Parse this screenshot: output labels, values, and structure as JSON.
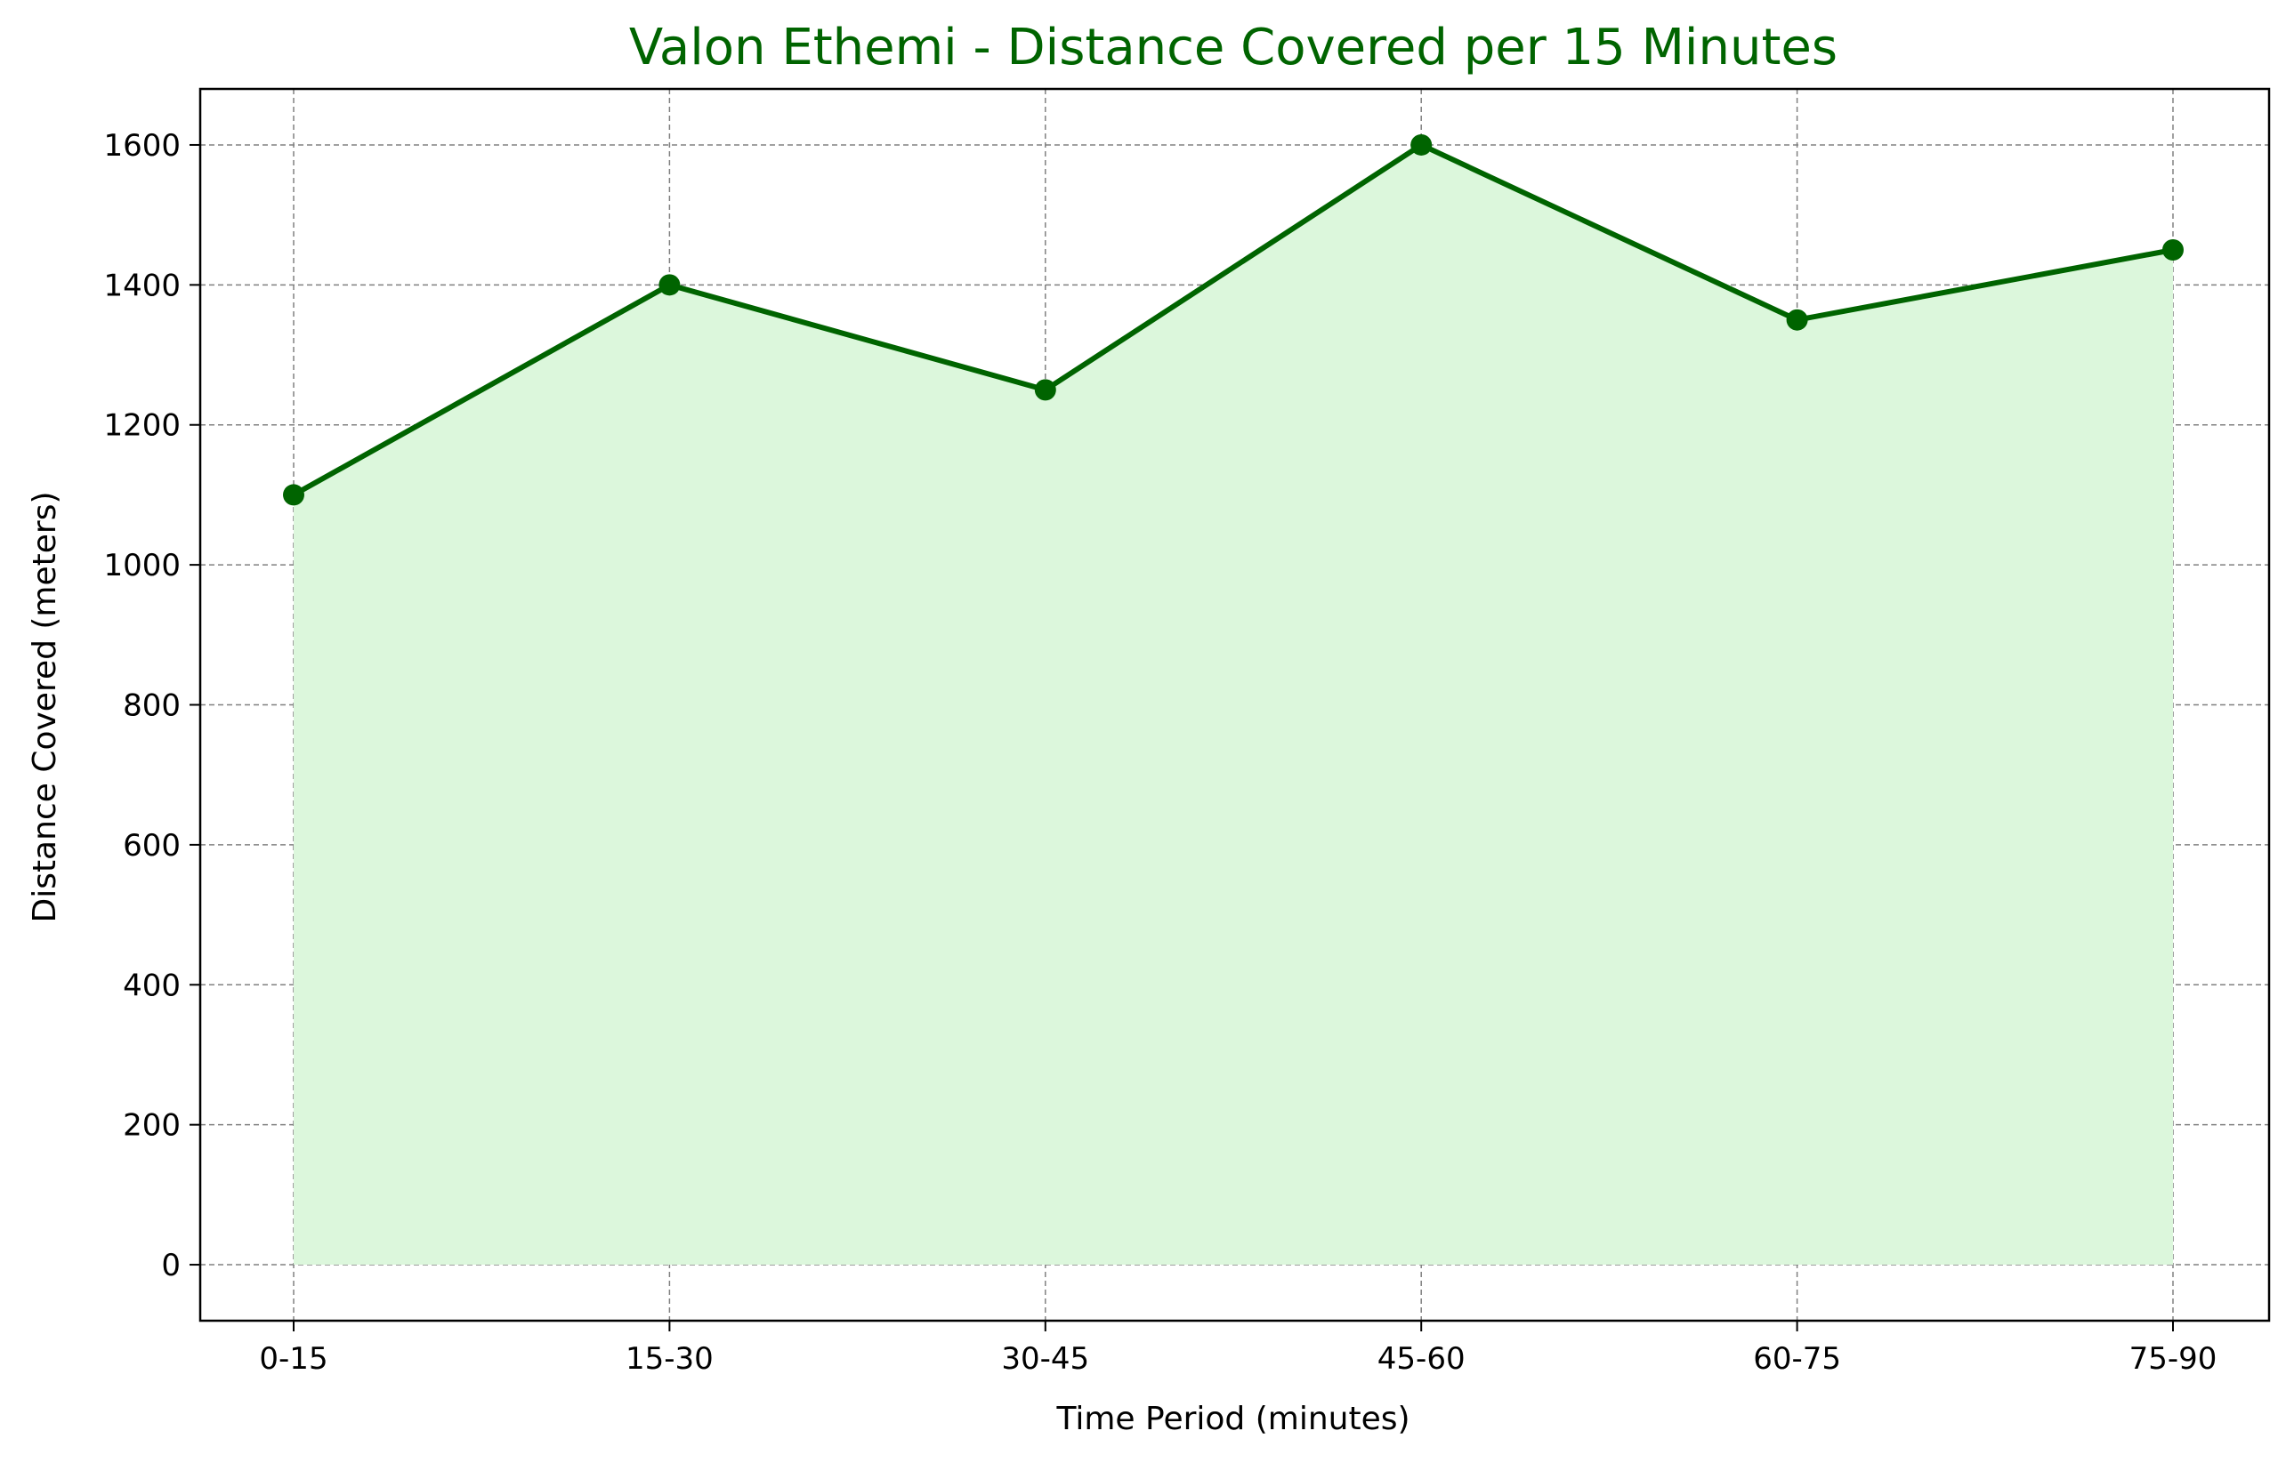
{
  "colors": {
    "line": "#006400",
    "fill": "#dcf7dc",
    "grid": "#808080",
    "title": "#006400",
    "axes": "#000000"
  },
  "chart_data": {
    "type": "area",
    "title": "Valon Ethemi - Distance Covered per 15 Minutes",
    "xlabel": "Time Period (minutes)",
    "ylabel": "Distance Covered (meters)",
    "categories": [
      "0-15",
      "15-30",
      "30-45",
      "45-60",
      "60-75",
      "75-90"
    ],
    "series": [
      {
        "values": [
          1100,
          1400,
          1250,
          1600,
          1350,
          1450
        ]
      }
    ],
    "ylim": [
      -80,
      1680
    ],
    "yticks": [
      0,
      200,
      400,
      600,
      800,
      1000,
      1200,
      1400,
      1600
    ],
    "grid": true,
    "markers": "circle",
    "legend": "none"
  }
}
